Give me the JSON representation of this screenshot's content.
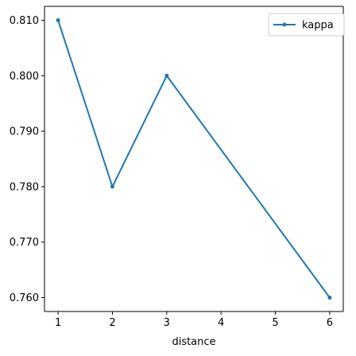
{
  "chart_data": {
    "type": "line",
    "title": "",
    "xlabel": "distance",
    "ylabel": "",
    "x": [
      1,
      2,
      3,
      6
    ],
    "series": [
      {
        "name": "kappa",
        "values": [
          0.81,
          0.78,
          0.8,
          0.76
        ],
        "color": "#1f77b4",
        "marker": "circle"
      }
    ],
    "xlim": [
      0.75,
      6.25
    ],
    "ylim": [
      0.7575,
      0.8125
    ],
    "xticks": [
      1,
      2,
      3,
      4,
      5,
      6
    ],
    "xtick_labels": [
      "1",
      "2",
      "3",
      "4",
      "5",
      "6"
    ],
    "yticks": [
      0.76,
      0.77,
      0.78,
      0.79,
      0.8,
      0.81
    ],
    "ytick_labels": [
      "0.760",
      "0.770",
      "0.780",
      "0.790",
      "0.800",
      "0.810"
    ],
    "grid": false,
    "legend": {
      "position": "upper-right",
      "entries": [
        "kappa"
      ]
    }
  }
}
